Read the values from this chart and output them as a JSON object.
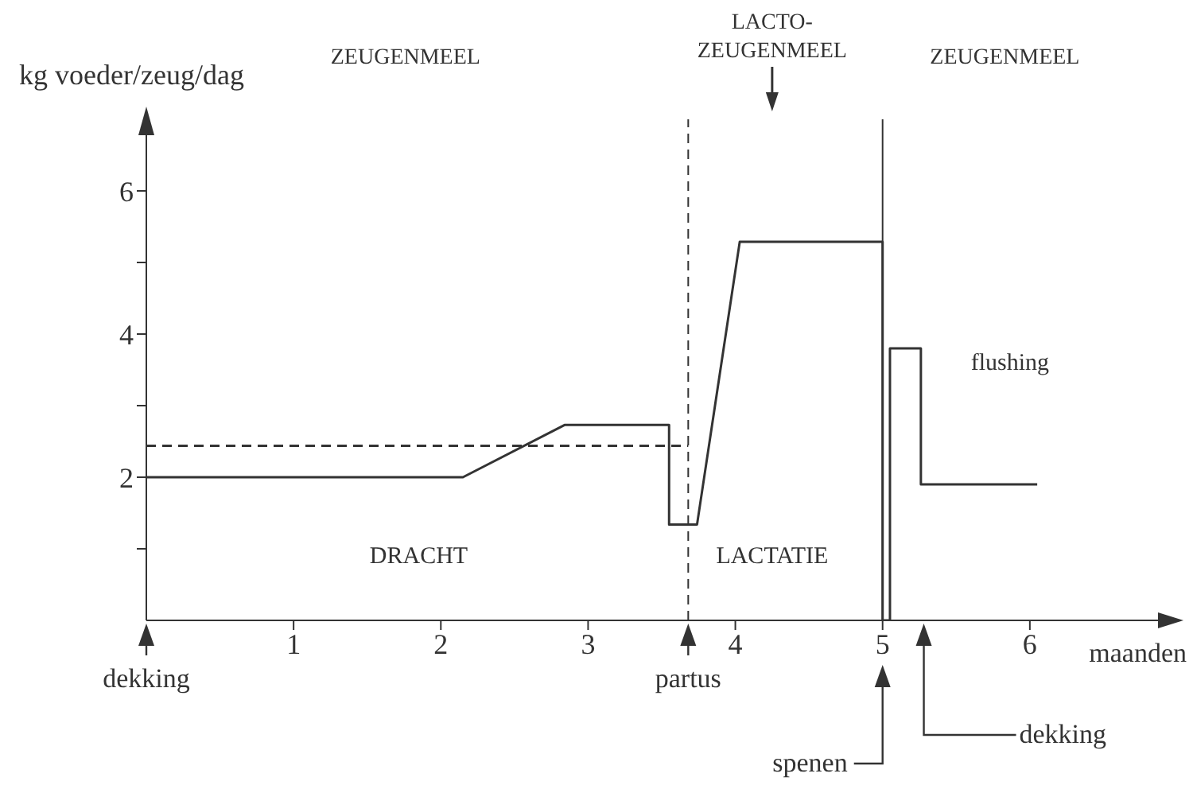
{
  "chart_data": {
    "type": "line",
    "xlabel": "maanden",
    "ylabel": "kg voeder/zeug/dag",
    "xlim": [
      0,
      7
    ],
    "xticks": [
      1,
      2,
      3,
      4,
      5,
      6
    ],
    "ylim": [
      0,
      7
    ],
    "yticks": [
      {
        "value": 1,
        "label": null
      },
      2,
      {
        "value": 3,
        "label": null
      },
      4,
      {
        "value": 5,
        "label": null
      },
      6
    ],
    "grid": false,
    "marker": "none",
    "series": [
      {
        "color": "#333333",
        "line_style": "solid",
        "x": [
          0,
          2.15,
          2.84,
          3.55,
          3.55,
          3.74,
          4.03,
          5,
          5,
          5.05,
          5.05,
          5.26,
          5.26,
          6.05
        ],
        "values": [
          2,
          2,
          2.73,
          2.73,
          1.34,
          1.34,
          5.29,
          5.29,
          0,
          0,
          3.8,
          3.8,
          1.9,
          1.9
        ]
      },
      {
        "color": "#333333",
        "line_style": "dashed",
        "x": [
          0,
          3.68
        ],
        "values": [
          2.44,
          2.44
        ]
      }
    ],
    "ref_lines": [
      {
        "axis": "x",
        "value": 3.68,
        "line_style": "dashed",
        "color": "#333333"
      },
      {
        "axis": "x",
        "value": 5,
        "line_style": "solid",
        "color": "#333333"
      }
    ],
    "annotations": [
      "ZEUGENMEEL",
      "LACTO-\nZEUGENMEEL",
      "ZEUGENMEEL",
      "DRACHT",
      "LACTATIE",
      "flushing",
      "dekking",
      "partus",
      "spenen",
      "dekking"
    ]
  }
}
